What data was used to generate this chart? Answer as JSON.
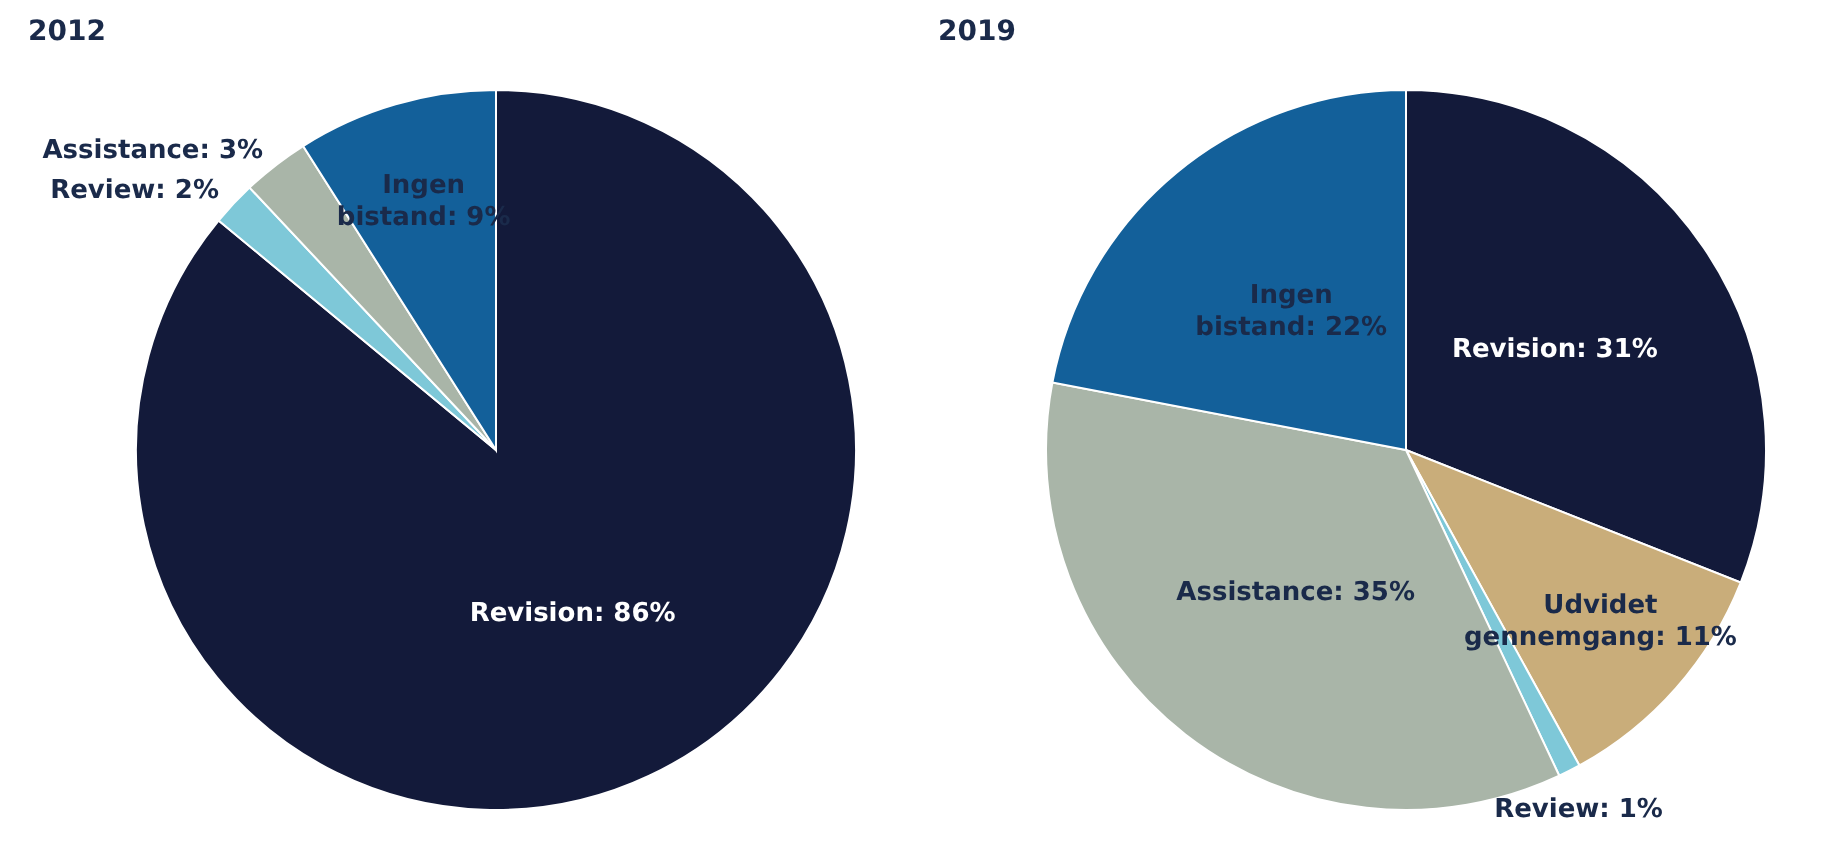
{
  "chart_data": [
    {
      "type": "pie",
      "title": "2012",
      "categories": [
        "Revision",
        "Review",
        "Assistance",
        "Ingen bistand"
      ],
      "values": [
        86,
        2,
        3,
        9
      ],
      "value_labels": [
        ": 86%",
        ": 2%",
        ": 3%",
        ": 9%"
      ],
      "colors": [
        "#131a3a",
        "#7ec8d8",
        "#a9b5a8",
        "#13609a"
      ]
    },
    {
      "type": "pie",
      "title": "2019",
      "categories": [
        "Revision",
        "Udvidet gennemgang",
        "Review",
        "Assistance",
        "Ingen bistand"
      ],
      "values": [
        31,
        11,
        1,
        35,
        22
      ],
      "value_labels": [
        ": 31%",
        ": 11%",
        ": 1%",
        ": 35%",
        ": 22%"
      ],
      "colors": [
        "#131a3a",
        "#c9ad7a",
        "#7ec8d8",
        "#a9b5a8",
        "#13609a"
      ]
    }
  ]
}
